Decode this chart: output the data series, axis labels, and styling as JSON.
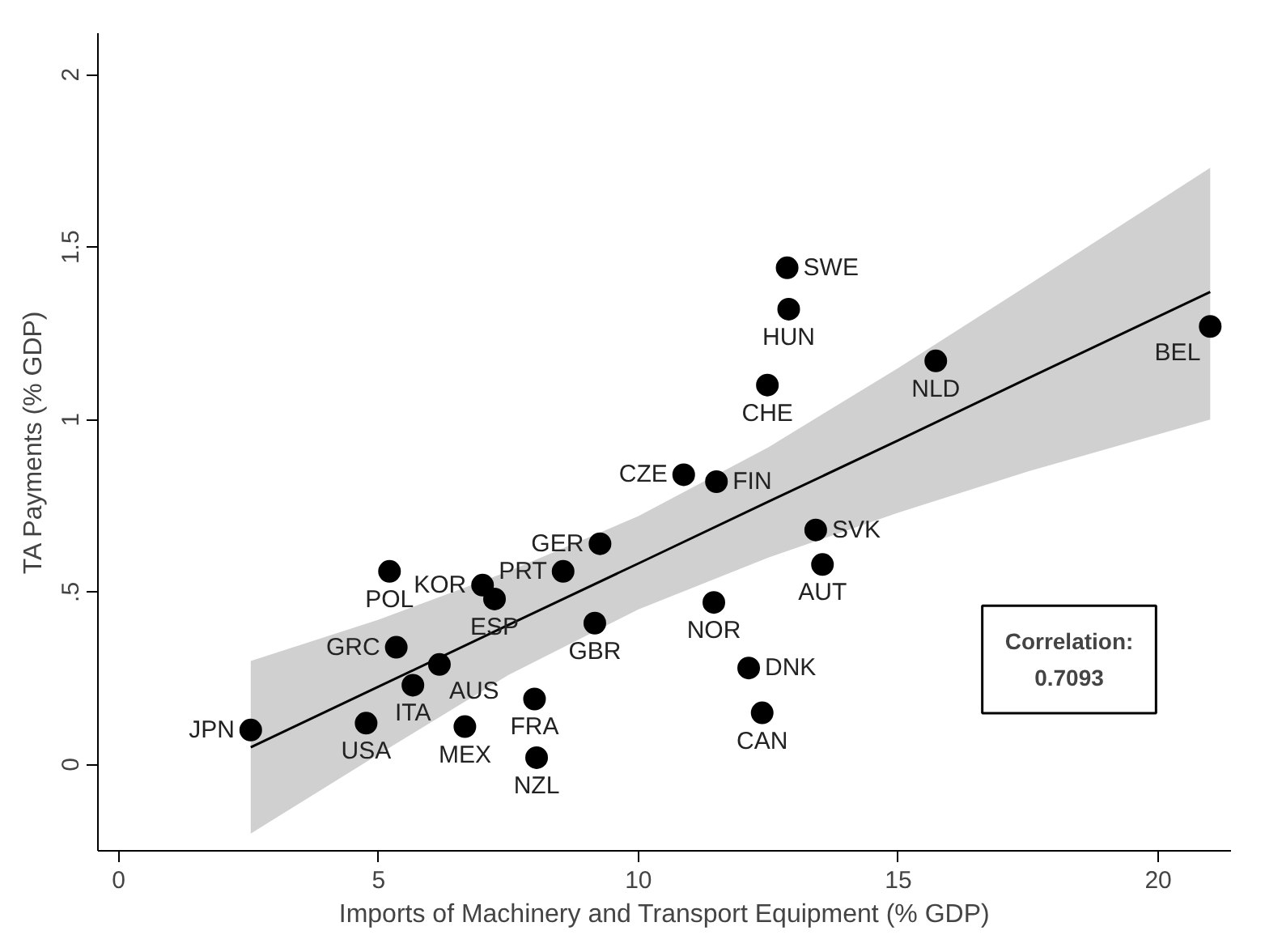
{
  "chart_data": {
    "type": "scatter",
    "xlabel": "Imports of Machinery and Transport Equipment (% GDP)",
    "ylabel": "TA Payments (% GDP)",
    "xlim": [
      -0.4,
      21.4
    ],
    "ylim": [
      -0.25,
      2.12
    ],
    "xticks": [
      0,
      5,
      10,
      15,
      20
    ],
    "yticks": [
      0,
      {
        "value": 0.5,
        "label": ".5"
      },
      1,
      1.5,
      2
    ],
    "grid": false,
    "marker": "circle",
    "series": [
      {
        "type": "line",
        "color": "#000000",
        "x": [
          2.54,
          5,
          7.5,
          10,
          12.5,
          15,
          17.5,
          21
        ],
        "values": [
          0.05,
          0.226,
          0.405,
          0.583,
          0.762,
          0.94,
          1.12,
          1.37
        ],
        "lower": [
          -0.2,
          0.03,
          0.26,
          0.45,
          0.6,
          0.73,
          0.85,
          1.0
        ],
        "upper": [
          0.3,
          0.42,
          0.56,
          0.72,
          0.92,
          1.15,
          1.39,
          1.73
        ],
        "marker": "none"
      },
      {
        "color": "#000000",
        "x": [
          2.54,
          4.76,
          5.34,
          5.66,
          6.17,
          5.21,
          7.0,
          7.23,
          6.66,
          8.0,
          8.04,
          8.55,
          9.26,
          9.16,
          10.87,
          11.5,
          12.86,
          12.89,
          12.48,
          15.72,
          21.0,
          13.41,
          13.54,
          11.45,
          12.12,
          12.38
        ],
        "values": [
          0.1,
          0.12,
          0.34,
          0.23,
          0.29,
          0.56,
          0.52,
          0.48,
          0.11,
          0.19,
          0.02,
          0.56,
          0.64,
          0.41,
          0.84,
          0.82,
          1.44,
          1.32,
          1.1,
          1.17,
          1.27,
          0.68,
          0.58,
          0.47,
          0.28,
          0.15
        ]
      }
    ],
    "annotations": [
      {
        "text": "JPN",
        "x": 2.54,
        "y": 0.1
      },
      {
        "text": "USA",
        "x": 4.76,
        "y": 0.12
      },
      {
        "text": "GRC",
        "x": 5.34,
        "y": 0.34
      },
      {
        "text": "ITA",
        "x": 5.66,
        "y": 0.23
      },
      {
        "text": "AUS",
        "x": 6.17,
        "y": 0.29
      },
      {
        "text": "POL",
        "x": 5.21,
        "y": 0.56
      },
      {
        "text": "KOR",
        "x": 7.0,
        "y": 0.52
      },
      {
        "text": "ESP",
        "x": 7.23,
        "y": 0.48
      },
      {
        "text": "MEX",
        "x": 6.66,
        "y": 0.11
      },
      {
        "text": "FRA",
        "x": 8.0,
        "y": 0.19
      },
      {
        "text": "NZL",
        "x": 8.04,
        "y": 0.02
      },
      {
        "text": "PRT",
        "x": 8.55,
        "y": 0.56
      },
      {
        "text": "GER",
        "x": 9.26,
        "y": 0.64
      },
      {
        "text": "GBR",
        "x": 9.16,
        "y": 0.41
      },
      {
        "text": "CZE",
        "x": 10.87,
        "y": 0.84
      },
      {
        "text": "FIN",
        "x": 11.5,
        "y": 0.82
      },
      {
        "text": "SWE",
        "x": 12.86,
        "y": 1.44
      },
      {
        "text": "HUN",
        "x": 12.89,
        "y": 1.32
      },
      {
        "text": "CHE",
        "x": 12.48,
        "y": 1.1
      },
      {
        "text": "NLD",
        "x": 15.72,
        "y": 1.17
      },
      {
        "text": "BEL",
        "x": 21.0,
        "y": 1.27
      },
      {
        "text": "SVK",
        "x": 13.41,
        "y": 0.68
      },
      {
        "text": "AUT",
        "x": 13.54,
        "y": 0.58
      },
      {
        "text": "NOR",
        "x": 11.45,
        "y": 0.47
      },
      {
        "text": "DNK",
        "x": 12.12,
        "y": 0.28
      },
      {
        "text": "CAN",
        "x": 12.38,
        "y": 0.15
      },
      "Correlation:\n0.7093"
    ]
  }
}
